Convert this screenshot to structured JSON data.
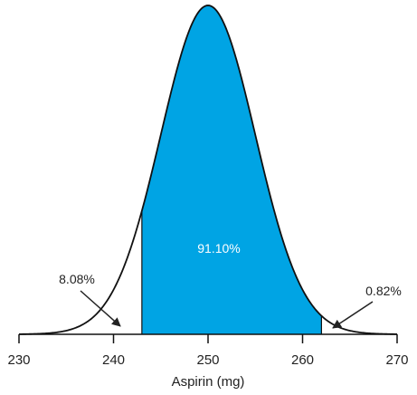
{
  "chart_data": {
    "type": "area",
    "distribution": "normal",
    "mean": 250,
    "sd": 5,
    "xlim": [
      230,
      270
    ],
    "ticks": [
      230,
      240,
      250,
      260,
      270
    ],
    "tick_labels": [
      "230",
      "240",
      "250",
      "260",
      "270"
    ],
    "xlabel": "Aspirin (mg)",
    "shaded_region": {
      "from": 243,
      "to": 262,
      "label": "91.10%",
      "color": "#00a4e4"
    },
    "tail_annotations": [
      {
        "label": "8.08%",
        "side": "left",
        "bound": 243
      },
      {
        "label": "0.82%",
        "side": "right",
        "bound": 262
      }
    ]
  }
}
